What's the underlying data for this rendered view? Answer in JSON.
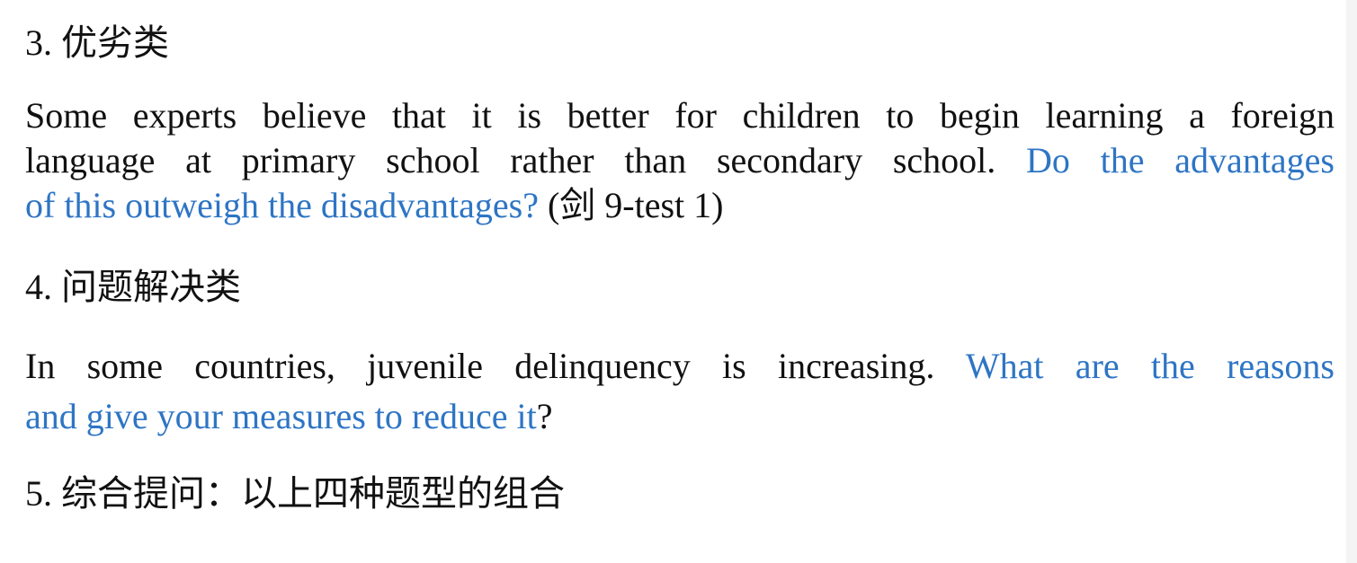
{
  "section3": {
    "heading": "3. 优劣类",
    "line1": "Some experts believe that it is better for children to begin learning a foreign",
    "line2_plain": "language at primary school rather than secondary school. ",
    "line2_question": "Do the advantages",
    "line3_question": "of this outweigh the disadvantages?",
    "line3_source": " (剑 9-test 1)"
  },
  "section4": {
    "heading": "4. 问题解决类",
    "line1_plain": "In some countries, juvenile delinquency is increasing. ",
    "line1_question": "What are the reasons",
    "line2_question": "and give your measures to reduce it",
    "line2_tail": "?"
  },
  "section5": {
    "heading": "5. 综合提问：以上四种题型的组合"
  },
  "colors": {
    "text": "#111111",
    "question": "#2e75c4"
  }
}
